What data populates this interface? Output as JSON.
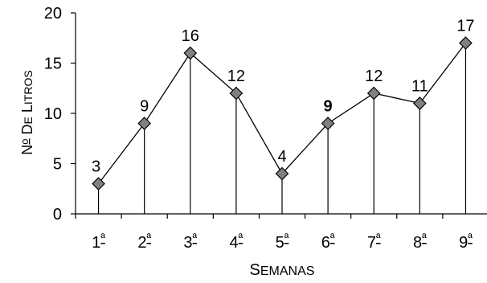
{
  "chart_data": {
    "type": "line",
    "categories": [
      "1ª",
      "2ª",
      "3ª",
      "4ª",
      "5ª",
      "6ª",
      "7ª",
      "8ª",
      "9ª"
    ],
    "values": [
      3,
      9,
      16,
      12,
      4,
      9,
      12,
      11,
      17
    ],
    "data_labels": [
      "3",
      "9",
      "16",
      "12",
      "4",
      "9",
      "12",
      "11",
      "17"
    ],
    "xlabel": "Semanas",
    "ylabel": "Nº de litros",
    "ylim": [
      0,
      20
    ],
    "yticks": [
      0,
      5,
      10,
      15,
      20
    ],
    "grid": false,
    "markers": "diamond",
    "drop_lines": true,
    "colors": {
      "marker_fill": "#808080",
      "line": "#000000",
      "axis": "#000000"
    }
  }
}
